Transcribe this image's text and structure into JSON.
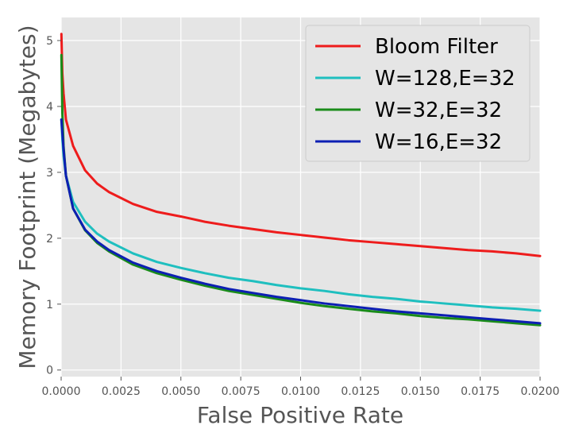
{
  "chart_data": {
    "type": "line",
    "title": "",
    "xlabel": "False Positive Rate",
    "ylabel": "Memory Footprint (Megabytes)",
    "xlim": [
      0.0,
      0.02
    ],
    "ylim": [
      -0.1,
      5.35
    ],
    "x_ticks": [
      "0.0000",
      "0.0025",
      "0.0050",
      "0.0075",
      "0.0100",
      "0.0125",
      "0.0150",
      "0.0175",
      "0.0200"
    ],
    "y_ticks": [
      "0",
      "1",
      "2",
      "3",
      "4",
      "5"
    ],
    "grid": true,
    "legend_position": "top-right",
    "series": [
      {
        "name": "Bloom Filter",
        "color": "#ee1c1c",
        "x": [
          1e-05,
          5e-05,
          0.0001,
          0.0002,
          0.0005,
          0.001,
          0.0015,
          0.002,
          0.003,
          0.004,
          0.005,
          0.006,
          0.007,
          0.008,
          0.009,
          0.01,
          0.011,
          0.012,
          0.013,
          0.014,
          0.015,
          0.016,
          0.017,
          0.018,
          0.019,
          0.02
        ],
        "y": [
          5.1,
          4.5,
          4.2,
          3.8,
          3.4,
          3.03,
          2.83,
          2.7,
          2.52,
          2.4,
          2.33,
          2.25,
          2.19,
          2.14,
          2.09,
          2.05,
          2.01,
          1.97,
          1.94,
          1.91,
          1.88,
          1.85,
          1.82,
          1.8,
          1.77,
          1.73
        ]
      },
      {
        "name": "W=128,E=32",
        "color": "#1fbfbf",
        "x": [
          1e-05,
          5e-05,
          0.0001,
          0.0002,
          0.0005,
          0.001,
          0.0015,
          0.002,
          0.003,
          0.004,
          0.005,
          0.006,
          0.007,
          0.008,
          0.009,
          0.01,
          0.011,
          0.012,
          0.013,
          0.014,
          0.015,
          0.016,
          0.017,
          0.018,
          0.019,
          0.02
        ],
        "y": [
          3.8,
          3.5,
          3.25,
          2.95,
          2.55,
          2.25,
          2.07,
          1.95,
          1.77,
          1.64,
          1.55,
          1.47,
          1.4,
          1.35,
          1.29,
          1.24,
          1.2,
          1.15,
          1.11,
          1.08,
          1.04,
          1.01,
          0.98,
          0.95,
          0.93,
          0.9
        ]
      },
      {
        "name": "W=32,E=32",
        "color": "#1a8c1a",
        "x": [
          1e-05,
          5e-05,
          0.0001,
          0.0002,
          0.0005,
          0.001,
          0.0015,
          0.002,
          0.003,
          0.004,
          0.005,
          0.006,
          0.007,
          0.008,
          0.009,
          0.01,
          0.011,
          0.012,
          0.013,
          0.014,
          0.015,
          0.016,
          0.017,
          0.018,
          0.019,
          0.02
        ],
        "y": [
          4.78,
          3.9,
          3.4,
          2.95,
          2.45,
          2.12,
          1.93,
          1.8,
          1.6,
          1.47,
          1.37,
          1.28,
          1.2,
          1.14,
          1.08,
          1.02,
          0.97,
          0.93,
          0.89,
          0.86,
          0.82,
          0.79,
          0.77,
          0.74,
          0.71,
          0.68
        ]
      },
      {
        "name": "W=16,E=32",
        "color": "#0d1fb3",
        "x": [
          1e-05,
          5e-05,
          0.0001,
          0.0002,
          0.0005,
          0.001,
          0.0015,
          0.002,
          0.003,
          0.004,
          0.005,
          0.006,
          0.007,
          0.008,
          0.009,
          0.01,
          0.011,
          0.012,
          0.013,
          0.014,
          0.015,
          0.016,
          0.017,
          0.018,
          0.019,
          0.02
        ],
        "y": [
          3.8,
          3.6,
          3.35,
          2.95,
          2.45,
          2.13,
          1.95,
          1.82,
          1.63,
          1.5,
          1.4,
          1.31,
          1.23,
          1.17,
          1.11,
          1.06,
          1.01,
          0.97,
          0.93,
          0.89,
          0.86,
          0.83,
          0.8,
          0.77,
          0.74,
          0.71
        ]
      }
    ]
  }
}
